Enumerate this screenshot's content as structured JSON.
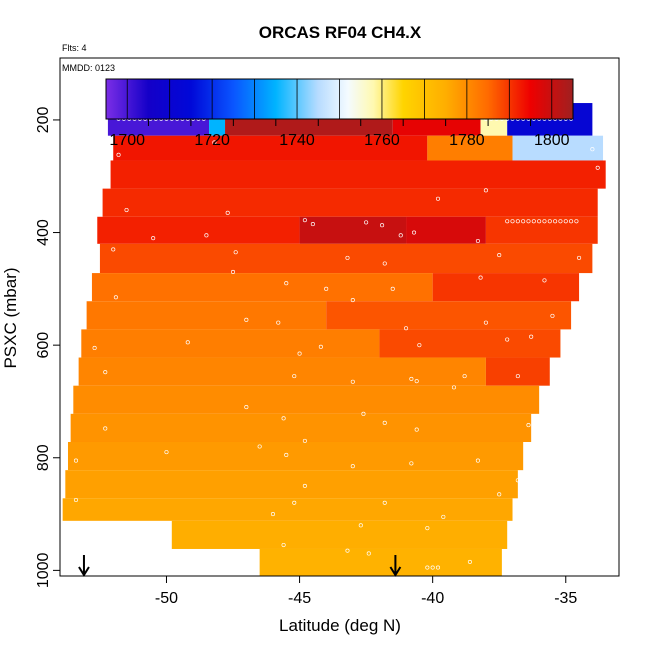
{
  "chart_data": {
    "type": "heatmap",
    "title": "ORCAS RF04 CH4.X",
    "subtitle": "Flts: 4",
    "annotation": "MMDD: 0123",
    "xlabel": "Latitude (deg N)",
    "ylabel": "PSXC (mbar)",
    "xlim": [
      -54,
      -33
    ],
    "ylim": [
      1010,
      90
    ],
    "y_reversed": true,
    "x_ticks": [
      -50,
      -45,
      -40,
      -35
    ],
    "x_tick_labels": [
      "-50",
      "-45",
      "-40",
      "-35"
    ],
    "y_ticks": [
      200,
      400,
      600,
      800,
      1000
    ],
    "y_tick_labels": [
      "200",
      "400",
      "600",
      "800",
      "1000"
    ],
    "colorbar": {
      "min": 1695,
      "max": 1805,
      "ticks": [
        1700,
        1720,
        1740,
        1760,
        1780,
        1800
      ],
      "tick_labels": [
        "1700",
        "1720",
        "1740",
        "1760",
        "1780",
        "1800"
      ],
      "stops": [
        {
          "v": 1695,
          "c": "#7b2ee6"
        },
        {
          "v": 1705,
          "c": "#1400c8"
        },
        {
          "v": 1715,
          "c": "#0008d8"
        },
        {
          "v": 1725,
          "c": "#0a55ff"
        },
        {
          "v": 1735,
          "c": "#00b4ff"
        },
        {
          "v": 1745,
          "c": "#b8dcff"
        },
        {
          "v": 1752,
          "c": "#f4fbff"
        },
        {
          "v": 1758,
          "c": "#fff9b0"
        },
        {
          "v": 1765,
          "c": "#ffd400"
        },
        {
          "v": 1775,
          "c": "#ffae00"
        },
        {
          "v": 1785,
          "c": "#ff6a00"
        },
        {
          "v": 1795,
          "c": "#ee0000"
        },
        {
          "v": 1805,
          "c": "#a02020"
        }
      ]
    },
    "cells": [
      {
        "lat": [
          -52.2,
          -48.4
        ],
        "p": [
          170,
          228
        ],
        "ch4": 1700
      },
      {
        "lat": [
          -48.4,
          -47.8
        ],
        "p": [
          170,
          228
        ],
        "ch4": 1735
      },
      {
        "lat": [
          -47.8,
          -41.5
        ],
        "p": [
          170,
          228
        ],
        "ch4": 1803
      },
      {
        "lat": [
          -41.5,
          -38.2
        ],
        "p": [
          170,
          228
        ],
        "ch4": 1796
      },
      {
        "lat": [
          -38.2,
          -37.2
        ],
        "p": [
          170,
          228
        ],
        "ch4": 1758
      },
      {
        "lat": [
          -37.2,
          -34.0
        ],
        "p": [
          170,
          228
        ],
        "ch4": 1712
      },
      {
        "lat": [
          -52.0,
          -40.2
        ],
        "p": [
          228,
          272
        ],
        "ch4": 1793
      },
      {
        "lat": [
          -40.2,
          -37.0
        ],
        "p": [
          228,
          272
        ],
        "ch4": 1782
      },
      {
        "lat": [
          -37.0,
          -33.6
        ],
        "p": [
          228,
          272
        ],
        "ch4": 1745
      },
      {
        "lat": [
          -52.1,
          -33.5
        ],
        "p": [
          272,
          322
        ],
        "ch4": 1792
      },
      {
        "lat": [
          -52.4,
          -33.8
        ],
        "p": [
          322,
          372
        ],
        "ch4": 1791
      },
      {
        "lat": [
          -52.6,
          -45.0
        ],
        "p": [
          372,
          420
        ],
        "ch4": 1792
      },
      {
        "lat": [
          -45.0,
          -41.0
        ],
        "p": [
          372,
          420
        ],
        "ch4": 1800
      },
      {
        "lat": [
          -41.0,
          -38.0
        ],
        "p": [
          372,
          420
        ],
        "ch4": 1798
      },
      {
        "lat": [
          -38.0,
          -33.8
        ],
        "p": [
          372,
          420
        ],
        "ch4": 1790
      },
      {
        "lat": [
          -52.5,
          -34.0
        ],
        "p": [
          420,
          472
        ],
        "ch4": 1788
      },
      {
        "lat": [
          -52.8,
          -40.0
        ],
        "p": [
          472,
          522
        ],
        "ch4": 1784
      },
      {
        "lat": [
          -40.0,
          -34.5
        ],
        "p": [
          472,
          522
        ],
        "ch4": 1790
      },
      {
        "lat": [
          -53.0,
          -44.0
        ],
        "p": [
          522,
          572
        ],
        "ch4": 1783
      },
      {
        "lat": [
          -44.0,
          -34.8
        ],
        "p": [
          522,
          572
        ],
        "ch4": 1787
      },
      {
        "lat": [
          -53.2,
          -42.0
        ],
        "p": [
          572,
          622
        ],
        "ch4": 1782
      },
      {
        "lat": [
          -42.0,
          -35.2
        ],
        "p": [
          572,
          622
        ],
        "ch4": 1788
      },
      {
        "lat": [
          -53.3,
          -38.0
        ],
        "p": [
          622,
          672
        ],
        "ch4": 1781
      },
      {
        "lat": [
          -38.0,
          -35.6
        ],
        "p": [
          622,
          672
        ],
        "ch4": 1789
      },
      {
        "lat": [
          -53.5,
          -36.0
        ],
        "p": [
          672,
          722
        ],
        "ch4": 1780
      },
      {
        "lat": [
          -53.6,
          -36.3
        ],
        "p": [
          722,
          772
        ],
        "ch4": 1779
      },
      {
        "lat": [
          -53.7,
          -36.6
        ],
        "p": [
          772,
          822
        ],
        "ch4": 1778
      },
      {
        "lat": [
          -53.8,
          -36.8
        ],
        "p": [
          822,
          872
        ],
        "ch4": 1777
      },
      {
        "lat": [
          -53.9,
          -37.0
        ],
        "p": [
          872,
          912
        ],
        "ch4": 1776
      },
      {
        "lat": [
          -49.8,
          -37.2
        ],
        "p": [
          912,
          962
        ],
        "ch4": 1775
      },
      {
        "lat": [
          -46.5,
          -37.4
        ],
        "p": [
          962,
          1010
        ],
        "ch4": 1774
      }
    ],
    "arrows": [
      {
        "lat": -53.1
      },
      {
        "lat": -41.4
      }
    ],
    "point_rows": [
      {
        "p": 198,
        "lat": [
          -51.8,
          -51.6,
          -51.4,
          -51.2,
          -51.0,
          -50.8,
          -50.6,
          -50.4,
          -50.2,
          -50.0,
          -49.8,
          -49.6,
          -49.4,
          -49.2,
          -49.0,
          -48.8,
          -48.6,
          -38.0,
          -37.8,
          -37.6,
          -37.4,
          -37.2,
          -37.0,
          -36.8,
          -36.6,
          -36.4,
          -36.2,
          -36.0,
          -35.8,
          -35.6,
          -35.4,
          -35.2,
          -35.0,
          -34.8
        ]
      },
      {
        "p": 380,
        "lat": [
          -37.2,
          -37.0,
          -36.8,
          -36.6,
          -36.4,
          -36.2,
          -36.0,
          -35.8,
          -35.6,
          -35.4,
          -35.2,
          -35.0,
          -34.8,
          -34.6
        ]
      },
      {
        "p": 995,
        "lat": [
          -40.2,
          -40.0,
          -39.8
        ]
      }
    ],
    "points": [
      {
        "lat": -48.2,
        "p": 240
      },
      {
        "lat": -51.8,
        "p": 262
      },
      {
        "lat": -34.0,
        "p": 252
      },
      {
        "lat": -33.8,
        "p": 285
      },
      {
        "lat": -38.0,
        "p": 325
      },
      {
        "lat": -39.8,
        "p": 340
      },
      {
        "lat": -51.5,
        "p": 360
      },
      {
        "lat": -47.7,
        "p": 365
      },
      {
        "lat": -44.8,
        "p": 378
      },
      {
        "lat": -44.5,
        "p": 385
      },
      {
        "lat": -42.5,
        "p": 382
      },
      {
        "lat": -41.9,
        "p": 387
      },
      {
        "lat": -41.2,
        "p": 405
      },
      {
        "lat": -40.7,
        "p": 400
      },
      {
        "lat": -38.3,
        "p": 415
      },
      {
        "lat": -48.5,
        "p": 405
      },
      {
        "lat": -50.5,
        "p": 410
      },
      {
        "lat": -52.0,
        "p": 430
      },
      {
        "lat": -47.4,
        "p": 435
      },
      {
        "lat": -43.2,
        "p": 445
      },
      {
        "lat": -41.8,
        "p": 455
      },
      {
        "lat": -37.5,
        "p": 440
      },
      {
        "lat": -34.5,
        "p": 445
      },
      {
        "lat": -47.5,
        "p": 470
      },
      {
        "lat": -45.5,
        "p": 490
      },
      {
        "lat": -44.0,
        "p": 500
      },
      {
        "lat": -41.5,
        "p": 500
      },
      {
        "lat": -38.2,
        "p": 480
      },
      {
        "lat": -35.8,
        "p": 485
      },
      {
        "lat": -51.9,
        "p": 515
      },
      {
        "lat": -43.0,
        "p": 520
      },
      {
        "lat": -47.0,
        "p": 555
      },
      {
        "lat": -45.8,
        "p": 560
      },
      {
        "lat": -41.0,
        "p": 570
      },
      {
        "lat": -38.0,
        "p": 560
      },
      {
        "lat": -35.5,
        "p": 548
      },
      {
        "lat": -49.2,
        "p": 595
      },
      {
        "lat": -44.2,
        "p": 603
      },
      {
        "lat": -40.5,
        "p": 600
      },
      {
        "lat": -37.2,
        "p": 590
      },
      {
        "lat": -36.3,
        "p": 585
      },
      {
        "lat": -52.7,
        "p": 605
      },
      {
        "lat": -45.0,
        "p": 615
      },
      {
        "lat": -52.3,
        "p": 648
      },
      {
        "lat": -45.2,
        "p": 655
      },
      {
        "lat": -43.0,
        "p": 665
      },
      {
        "lat": -40.8,
        "p": 660
      },
      {
        "lat": -40.6,
        "p": 664
      },
      {
        "lat": -38.8,
        "p": 655
      },
      {
        "lat": -36.8,
        "p": 655
      },
      {
        "lat": -39.2,
        "p": 675
      },
      {
        "lat": -47.0,
        "p": 710
      },
      {
        "lat": -45.6,
        "p": 730
      },
      {
        "lat": -42.6,
        "p": 722
      },
      {
        "lat": -41.8,
        "p": 738
      },
      {
        "lat": -40.6,
        "p": 750
      },
      {
        "lat": -36.4,
        "p": 742
      },
      {
        "lat": -35.8,
        "p": 770
      },
      {
        "lat": -52.3,
        "p": 748
      },
      {
        "lat": -44.8,
        "p": 770
      },
      {
        "lat": -36.0,
        "p": 770
      },
      {
        "lat": -50.0,
        "p": 790
      },
      {
        "lat": -46.5,
        "p": 780
      },
      {
        "lat": -45.5,
        "p": 795
      },
      {
        "lat": -43.0,
        "p": 815
      },
      {
        "lat": -40.8,
        "p": 810
      },
      {
        "lat": -38.3,
        "p": 805
      },
      {
        "lat": -53.4,
        "p": 805
      },
      {
        "lat": -44.8,
        "p": 850
      },
      {
        "lat": -36.8,
        "p": 840
      },
      {
        "lat": -53.4,
        "p": 875
      },
      {
        "lat": -45.2,
        "p": 880
      },
      {
        "lat": -41.8,
        "p": 880
      },
      {
        "lat": -37.5,
        "p": 865
      },
      {
        "lat": -46.0,
        "p": 900
      },
      {
        "lat": -39.6,
        "p": 905
      },
      {
        "lat": -36.8,
        "p": 900
      },
      {
        "lat": -42.7,
        "p": 920
      },
      {
        "lat": -40.2,
        "p": 925
      },
      {
        "lat": -45.6,
        "p": 955
      },
      {
        "lat": -43.2,
        "p": 965
      },
      {
        "lat": -42.4,
        "p": 970
      },
      {
        "lat": -38.6,
        "p": 985
      },
      {
        "lat": -36.9,
        "p": 975
      },
      {
        "lat": -47.2,
        "p": 985
      }
    ]
  }
}
